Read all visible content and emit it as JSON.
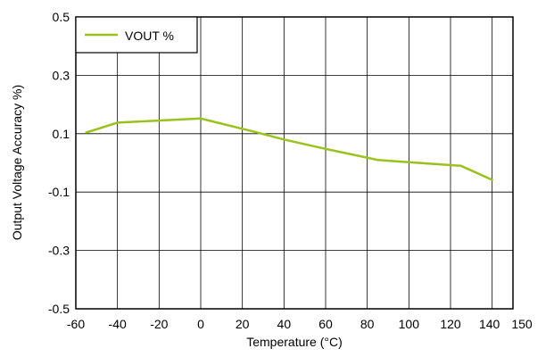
{
  "chart_data": {
    "type": "line",
    "title": "",
    "xlabel": "Temperature (°C)",
    "ylabel": "Output Voltage Accuracy %)",
    "xlim": [
      -60,
      150
    ],
    "ylim": [
      -0.5,
      0.5
    ],
    "x_ticks": [
      -60,
      -40,
      -20,
      0,
      20,
      40,
      60,
      80,
      100,
      120,
      140,
      150
    ],
    "x_tick_labels": [
      "-60",
      "-40",
      "-20",
      "0",
      "20",
      "40",
      "60",
      "80",
      "100",
      "120",
      "140",
      "150"
    ],
    "y_ticks": [
      -0.5,
      -0.3,
      -0.1,
      0.1,
      0.3,
      0.5
    ],
    "y_tick_labels": [
      "-0.5",
      "-0.3",
      "-0.1",
      "0.1",
      "0.3",
      "0.5"
    ],
    "grid": true,
    "legend_position": "top-left",
    "series": [
      {
        "name": "VOUT %",
        "color": "#99C31C",
        "x": [
          -55,
          -40,
          0,
          25,
          40,
          60,
          85,
          100,
          125,
          140
        ],
        "y": [
          0.104,
          0.138,
          0.152,
          0.108,
          0.08,
          0.048,
          0.01,
          0.002,
          -0.01,
          -0.058
        ]
      }
    ]
  }
}
